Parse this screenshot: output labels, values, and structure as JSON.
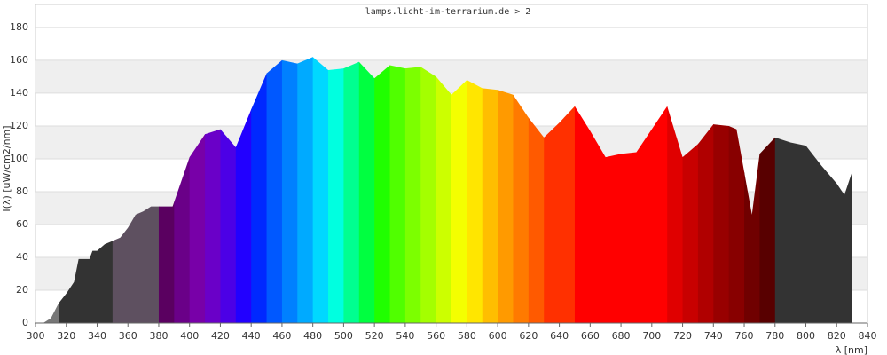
{
  "chart_data": {
    "type": "area",
    "title": "lamps.licht-im-terrarium.de > 2",
    "y_label": "I(λ) [uW/cm2/nm]",
    "x_label": "λ [nm]",
    "x": [
      305,
      310,
      315,
      320,
      325,
      328,
      335,
      337,
      340,
      345,
      350,
      355,
      360,
      365,
      370,
      375,
      380,
      389,
      400,
      410,
      420,
      430,
      440,
      450,
      460,
      470,
      480,
      490,
      500,
      510,
      520,
      530,
      540,
      550,
      560,
      570,
      580,
      590,
      600,
      610,
      620,
      630,
      640,
      650,
      660,
      670,
      680,
      690,
      700,
      710,
      720,
      730,
      740,
      750,
      755,
      765,
      770,
      780,
      790,
      800,
      810,
      820,
      825,
      830
    ],
    "values": [
      0,
      3,
      12,
      18,
      25,
      39,
      39,
      44,
      44,
      48,
      50,
      52,
      58,
      66,
      68,
      71,
      71,
      71,
      101,
      115,
      118,
      107,
      130,
      152,
      160,
      158,
      162,
      154,
      155,
      159,
      149,
      157,
      155,
      156,
      150,
      139,
      148,
      143,
      142,
      139,
      125,
      113,
      122,
      132,
      117,
      101,
      103,
      104,
      118,
      132,
      101,
      109,
      121,
      120,
      118,
      66,
      103,
      113,
      110,
      108,
      96,
      85,
      78,
      92
    ],
    "bands": {
      "edges": [
        300,
        315,
        350,
        380,
        390,
        400,
        410,
        420,
        430,
        440,
        450,
        460,
        470,
        480,
        490,
        500,
        510,
        520,
        530,
        540,
        550,
        560,
        570,
        580,
        590,
        600,
        610,
        620,
        630,
        650,
        710,
        720,
        730,
        740,
        750,
        760,
        770,
        780,
        840
      ],
      "colors": [
        "#777777",
        "#333333",
        "#5e5060",
        "#5a0060",
        "#6a0088",
        "#7800a8",
        "#6a00c8",
        "#4c00e6",
        "#2200ff",
        "#0028ff",
        "#0058ff",
        "#0080ff",
        "#00aaff",
        "#00d8ff",
        "#00ffe0",
        "#00ff90",
        "#00ff40",
        "#20ff00",
        "#50ff00",
        "#7cff00",
        "#a4ff00",
        "#ccff00",
        "#f4ff00",
        "#ffe600",
        "#ffbe00",
        "#ff9a00",
        "#ff7a00",
        "#ff5a00",
        "#ff3000",
        "#ff0000",
        "#e00000",
        "#c80000",
        "#b00000",
        "#980000",
        "#880000",
        "#700000",
        "#580000",
        "#333333"
      ]
    },
    "xlim": [
      300,
      840
    ],
    "ylim": [
      0,
      194
    ],
    "xticks": [
      300,
      320,
      340,
      360,
      380,
      400,
      420,
      440,
      460,
      480,
      500,
      520,
      540,
      560,
      580,
      600,
      620,
      640,
      660,
      680,
      700,
      720,
      740,
      760,
      780,
      800,
      820,
      840
    ],
    "yticks": [
      0,
      20,
      40,
      60,
      80,
      100,
      120,
      140,
      160,
      180
    ],
    "grid": true
  }
}
